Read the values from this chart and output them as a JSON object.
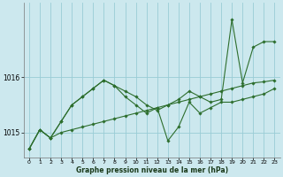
{
  "xlabel": "Graphe pression niveau de la mer (hPa)",
  "ylabel": "",
  "background_color": "#cce8ee",
  "grid_color": "#99ccd6",
  "line_color": "#2d6e2d",
  "xlim": [
    -0.5,
    23.5
  ],
  "ylim": [
    1014.55,
    1017.35
  ],
  "yticks": [
    1015,
    1016
  ],
  "xticks": [
    0,
    1,
    2,
    3,
    4,
    5,
    6,
    7,
    8,
    9,
    10,
    11,
    12,
    13,
    14,
    15,
    16,
    17,
    18,
    19,
    20,
    21,
    22,
    23
  ],
  "series": [
    {
      "x": [
        0,
        1,
        2,
        3,
        4,
        5,
        6,
        7,
        8,
        9,
        10,
        11,
        12,
        13,
        14,
        15,
        16,
        17,
        18,
        19,
        20,
        21,
        22,
        23
      ],
      "y": [
        1014.7,
        1015.05,
        1014.9,
        1015.0,
        1015.05,
        1015.1,
        1015.15,
        1015.2,
        1015.25,
        1015.3,
        1015.35,
        1015.4,
        1015.45,
        1015.5,
        1015.55,
        1015.6,
        1015.65,
        1015.7,
        1015.75,
        1015.8,
        1015.85,
        1015.9,
        1015.92,
        1015.95
      ]
    },
    {
      "x": [
        0,
        1,
        2,
        3,
        4,
        5,
        6,
        7,
        8,
        9,
        10,
        11,
        12,
        13,
        14,
        15,
        16,
        17,
        18,
        19,
        20,
        21,
        22,
        23
      ],
      "y": [
        1014.7,
        1015.05,
        1014.9,
        1015.2,
        1015.5,
        1015.65,
        1015.8,
        1015.95,
        1015.85,
        1015.75,
        1015.65,
        1015.5,
        1015.4,
        1015.5,
        1015.6,
        1015.75,
        1015.65,
        1015.55,
        1015.6,
        1017.05,
        1015.9,
        1016.55,
        1016.65,
        1016.65
      ]
    },
    {
      "x": [
        0,
        1,
        2,
        3,
        4,
        5,
        6,
        7,
        8,
        9,
        10,
        11,
        12,
        13,
        14,
        15,
        16,
        17,
        18,
        19,
        20,
        21,
        22,
        23
      ],
      "y": [
        1014.7,
        1015.05,
        1014.9,
        1015.2,
        1015.5,
        1015.65,
        1015.8,
        1015.95,
        1015.85,
        1015.65,
        1015.5,
        1015.35,
        1015.45,
        1014.85,
        1015.1,
        1015.55,
        1015.35,
        1015.45,
        1015.55,
        1015.55,
        1015.6,
        1015.65,
        1015.7,
        1015.8
      ]
    }
  ]
}
